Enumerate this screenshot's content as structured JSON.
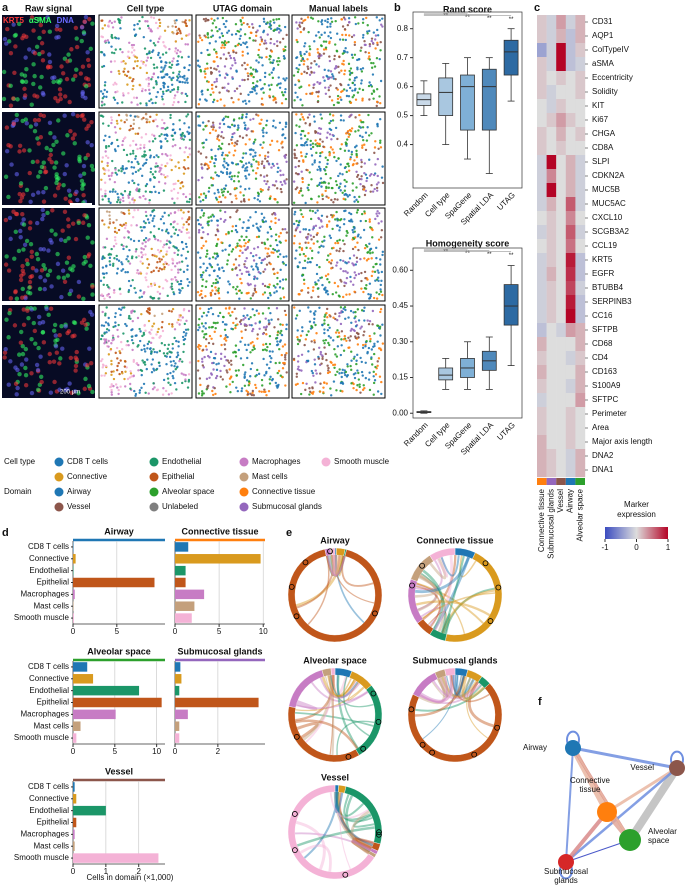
{
  "panel_letters": [
    "a",
    "b",
    "c",
    "d",
    "e",
    "f"
  ],
  "panel_a": {
    "column_titles": [
      "Raw signal",
      "Cell type",
      "UTAG domain",
      "Manual labels"
    ],
    "channels": [
      {
        "name": "KRT5",
        "color": "#ff3b3b"
      },
      {
        "name": "αSMA",
        "color": "#33ff66"
      },
      {
        "name": "DNA",
        "color": "#6a6aff"
      }
    ],
    "scale_bar": "200 μm"
  },
  "legend": {
    "cell_type_title": "Cell type",
    "cell_types": [
      {
        "name": "CD8 T cells",
        "color": "#1f77b4"
      },
      {
        "name": "Endothelial",
        "color": "#1b9668"
      },
      {
        "name": "Macrophages",
        "color": "#c77cc4"
      },
      {
        "name": "Smooth muscle",
        "color": "#f4b2d6"
      },
      {
        "name": "Connective",
        "color": "#d99a1e"
      },
      {
        "name": "Epithelial",
        "color": "#c0561a"
      },
      {
        "name": "Mast cells",
        "color": "#c4a07c"
      }
    ],
    "domain_title": "Domain",
    "domains": [
      {
        "name": "Airway",
        "color": "#1f77b4"
      },
      {
        "name": "Alveolar space",
        "color": "#2ca02c"
      },
      {
        "name": "Connective tissue",
        "color": "#ff7f0e"
      },
      {
        "name": "Vessel",
        "color": "#8c564b"
      },
      {
        "name": "Unlabeled",
        "color": "#7f7f7f"
      },
      {
        "name": "Submucosal glands",
        "color": "#9467bd"
      }
    ]
  },
  "chart_data": [
    {
      "type": "box",
      "title": "Rand score",
      "categories": [
        "Random",
        "Cell type",
        "SpaGene",
        "Spatial LDA",
        "UTAG"
      ],
      "colors": [
        "#c9d9e8",
        "#a9c7e0",
        "#7fb0d6",
        "#4f89bb",
        "#2d6aa3"
      ],
      "boxes": [
        {
          "whislo": 0.5,
          "q1": 0.535,
          "med": 0.555,
          "q3": 0.575,
          "whishi": 0.62
        },
        {
          "whislo": 0.4,
          "q1": 0.5,
          "med": 0.58,
          "q3": 0.63,
          "whishi": 0.68
        },
        {
          "whislo": 0.35,
          "q1": 0.45,
          "med": 0.6,
          "q3": 0.64,
          "whishi": 0.7
        },
        {
          "whislo": 0.3,
          "q1": 0.45,
          "med": 0.6,
          "q3": 0.66,
          "whishi": 0.7
        },
        {
          "whislo": 0.55,
          "q1": 0.64,
          "med": 0.72,
          "q3": 0.76,
          "whishi": 0.8
        }
      ],
      "annotations": [
        "**",
        "**",
        "**",
        "**"
      ],
      "ylim": [
        0.25,
        0.83
      ],
      "yticks": [
        0.4,
        0.5,
        0.6,
        0.7,
        0.8
      ]
    },
    {
      "type": "box",
      "title": "Homogeneity score",
      "categories": [
        "Random",
        "Cell type",
        "SpaGene",
        "Spatial LDA",
        "UTAG"
      ],
      "colors": [
        "#c9d9e8",
        "#a9c7e0",
        "#7fb0d6",
        "#4f89bb",
        "#2d6aa3"
      ],
      "boxes": [
        {
          "whislo": 0,
          "q1": 0.003,
          "med": 0.005,
          "q3": 0.007,
          "whishi": 0.01
        },
        {
          "whislo": 0.1,
          "q1": 0.14,
          "med": 0.16,
          "q3": 0.19,
          "whishi": 0.23
        },
        {
          "whislo": 0.1,
          "q1": 0.15,
          "med": 0.19,
          "q3": 0.23,
          "whishi": 0.3
        },
        {
          "whislo": 0.1,
          "q1": 0.18,
          "med": 0.22,
          "q3": 0.26,
          "whishi": 0.32
        },
        {
          "whislo": 0.2,
          "q1": 0.37,
          "med": 0.45,
          "q3": 0.54,
          "whishi": 0.62
        }
      ],
      "annotations": [
        "**",
        "**",
        "**",
        "**"
      ],
      "ylim": [
        -0.02,
        0.66
      ],
      "yticks": [
        {
          "value": 0,
          "label": "0.00"
        },
        0.15,
        {
          "value": 0.3,
          "label": "0.30"
        },
        0.45,
        {
          "value": 0.6,
          "label": "0.60"
        }
      ]
    },
    {
      "type": "heatmap",
      "rows": [
        "CD31",
        "AQP1",
        "ColTypeIV",
        "aSMA",
        "Eccentricity",
        "Solidity",
        "KIT",
        "Ki67",
        "CHGA",
        "CD8A",
        "SLPI",
        "CDKN2A",
        "MUC5B",
        "MUC5AC",
        "CXCL10",
        "SCGB3A2",
        "CCL19",
        "KRT5",
        "EGFR",
        "BTUBB4",
        "SERPINB3",
        "CC16",
        "SFTPB",
        "CD68",
        "CD4",
        "CD163",
        "S100A9",
        "SFTPC",
        "Perimeter",
        "Area",
        "Major axis length",
        "DNA2",
        "DNA1"
      ],
      "columns": [
        "Connective tissue",
        "Submucosal glands",
        "Vessel",
        "Airway",
        "Alveolar space"
      ],
      "column_colors": [
        "#ff7f0e",
        "#9467bd",
        "#8c564b",
        "#1f77b4",
        "#2ca02c"
      ],
      "values": [
        [
          0.1,
          -0.1,
          0.3,
          -0.1,
          0.2
        ],
        [
          0.1,
          -0.1,
          0.2,
          -0.2,
          0.2
        ],
        [
          -0.4,
          -0.1,
          1,
          -0.2,
          0.1
        ],
        [
          0.1,
          -0.1,
          1,
          -0.2,
          -0.1
        ],
        [
          0.1,
          0,
          0.1,
          0,
          0.1
        ],
        [
          0.1,
          -0.1,
          0,
          0,
          0.1
        ],
        [
          0,
          -0.1,
          0.1,
          0,
          0
        ],
        [
          0,
          0.1,
          0.3,
          0.1,
          0
        ],
        [
          0.1,
          0,
          0.2,
          0,
          0.1
        ],
        [
          0.1,
          0,
          0.1,
          0,
          0
        ],
        [
          -0.1,
          1,
          0,
          0.2,
          -0.1
        ],
        [
          -0.1,
          0.4,
          0,
          0.2,
          -0.1
        ],
        [
          -0.1,
          1,
          0,
          0.2,
          -0.1
        ],
        [
          -0.1,
          0.2,
          0,
          0.6,
          -0.1
        ],
        [
          0,
          0.1,
          0,
          0.4,
          0
        ],
        [
          -0.1,
          0.1,
          0,
          0.6,
          -0.1
        ],
        [
          0,
          0.1,
          0,
          0.5,
          0
        ],
        [
          -0.1,
          0.1,
          0,
          0.9,
          -0.2
        ],
        [
          -0.1,
          0.2,
          0,
          0.8,
          -0.2
        ],
        [
          -0.1,
          0.1,
          0,
          0.7,
          -0.1
        ],
        [
          -0.1,
          0.1,
          0,
          0.9,
          -0.2
        ],
        [
          -0.1,
          0.1,
          0,
          1,
          -0.2
        ],
        [
          -0.2,
          0,
          -0.1,
          0.3,
          0.2
        ],
        [
          0.2,
          0,
          0,
          0,
          0.2
        ],
        [
          0.1,
          0,
          0,
          -0.1,
          0.1
        ],
        [
          0.2,
          0,
          0,
          0,
          0.2
        ],
        [
          0.1,
          0,
          0,
          -0.1,
          0.2
        ],
        [
          -0.1,
          0,
          0,
          0,
          0.3
        ],
        [
          0.1,
          0,
          0,
          0.1,
          0
        ],
        [
          0.1,
          0,
          0,
          0.1,
          0
        ],
        [
          0.2,
          0,
          0,
          0.1,
          0
        ],
        [
          0.2,
          0.1,
          0,
          -0.1,
          0.2
        ],
        [
          0.2,
          0.1,
          0,
          -0.1,
          0.2
        ]
      ],
      "colorbar_title": [
        "Marker",
        "expression"
      ],
      "zlim": [
        -1,
        1
      ],
      "colorbar_ticks": [
        -1,
        0,
        1
      ]
    },
    {
      "type": "bar",
      "orientation": "horizontal",
      "title": "Airway",
      "title_color": "#1f77b4",
      "categories": [
        "CD8 T cells",
        "Connective",
        "Endothelial",
        "Epithelial",
        "Macrophages",
        "Mast cells",
        "Smooth muscle"
      ],
      "colors": [
        "#1f77b4",
        "#d99a1e",
        "#1b9668",
        "#c0561a",
        "#c77cc4",
        "#c4a07c",
        "#f4b2d6"
      ],
      "values": [
        0.05,
        0.3,
        0.05,
        9.3,
        0.2,
        0.05,
        0.1
      ],
      "xlim": [
        0,
        10.5
      ],
      "xticks": [
        0,
        5
      ],
      "grid": true
    },
    {
      "type": "bar",
      "orientation": "horizontal",
      "title": "Connective tissue",
      "title_color": "#ff7f0e",
      "categories": [
        null,
        null,
        null,
        null,
        null,
        null,
        null
      ],
      "colors": [
        "#1f77b4",
        "#d99a1e",
        "#1b9668",
        "#c0561a",
        "#c77cc4",
        "#c4a07c",
        "#f4b2d6"
      ],
      "values": [
        1.5,
        9.7,
        1.2,
        1.2,
        3.3,
        2.2,
        1.9
      ],
      "xlim": [
        0,
        10.2
      ],
      "xticks": [
        0,
        5,
        10
      ],
      "grid": true
    },
    {
      "type": "bar",
      "orientation": "horizontal",
      "title": "Alveolar space",
      "title_color": "#2ca02c",
      "categories": [
        "CD8 T cells",
        "Connective",
        "Endothelial",
        "Epithelial",
        "Macrophages",
        "Mast cells",
        "Smooth muscle"
      ],
      "colors": [
        "#1f77b4",
        "#d99a1e",
        "#1b9668",
        "#c0561a",
        "#c77cc4",
        "#c4a07c",
        "#f4b2d6"
      ],
      "values": [
        1.7,
        2.4,
        7.9,
        10.6,
        5.1,
        0.9,
        0.4
      ],
      "xlim": [
        0,
        11
      ],
      "xticks": [
        0,
        5,
        10
      ],
      "grid": true
    },
    {
      "type": "bar",
      "orientation": "horizontal",
      "title": "Submucosal glands",
      "title_color": "#9467bd",
      "categories": [
        null,
        null,
        null,
        null,
        null,
        null,
        null
      ],
      "colors": [
        "#1f77b4",
        "#d99a1e",
        "#1b9668",
        "#c0561a",
        "#c77cc4",
        "#c4a07c",
        "#f4b2d6"
      ],
      "values": [
        0.25,
        0.3,
        0.2,
        3.9,
        0.6,
        0.2,
        0.2
      ],
      "xlim": [
        0,
        4.2
      ],
      "xticks": [
        0,
        2
      ],
      "grid": true
    },
    {
      "type": "bar",
      "orientation": "horizontal",
      "title": "Vessel",
      "title_color": "#8c564b",
      "categories": [
        "CD8 T cells",
        "Connective",
        "Endothelial",
        "Epithelial",
        "Macrophages",
        "Mast cells",
        "Smooth muscle"
      ],
      "colors": [
        "#1f77b4",
        "#d99a1e",
        "#1b9668",
        "#c0561a",
        "#c77cc4",
        "#c4a07c",
        "#f4b2d6"
      ],
      "values": [
        0.05,
        0.1,
        1.0,
        0.1,
        0.05,
        0.05,
        2.6
      ],
      "xlim": [
        0,
        2.8
      ],
      "xticks": [
        0,
        1,
        2
      ],
      "grid": true
    }
  ],
  "panel_d": {
    "x_label": "Cells in domain (×1,000)"
  },
  "panel_e": {
    "titles": [
      "Airway",
      "Connective tissue",
      "Alveolar space",
      "Submucosal glands",
      "Vessel"
    ]
  },
  "panel_f": {
    "nodes": [
      {
        "label": [
          "Airway"
        ],
        "color": "#1f77b4"
      },
      {
        "label": [
          "Vessel"
        ],
        "color": "#8c564b"
      },
      {
        "label": [
          "Connective",
          "tissue"
        ],
        "color": "#ff7f0e"
      },
      {
        "label": [
          "Alveolar",
          "space"
        ],
        "color": "#2ca02c"
      },
      {
        "label": [
          "Submucosal",
          "glands"
        ],
        "color": "#d62728"
      }
    ]
  }
}
